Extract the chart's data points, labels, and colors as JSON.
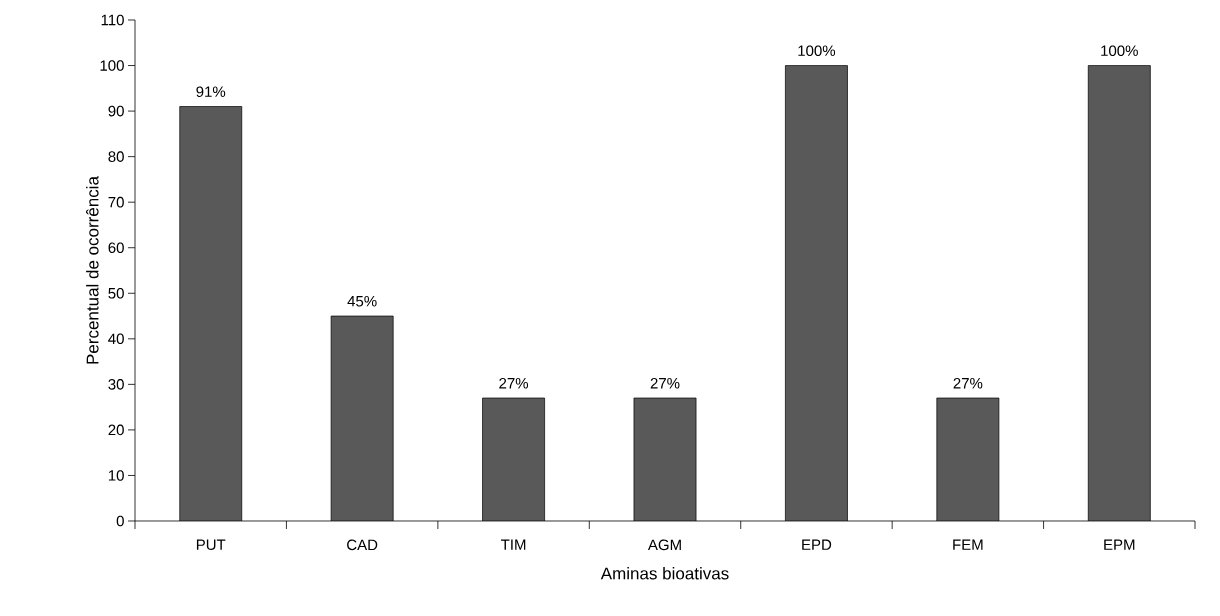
{
  "chart_data": {
    "type": "bar",
    "xlabel": "Aminas bioativas",
    "ylabel": "Percentual de ocorrência",
    "categories": [
      "PUT",
      "CAD",
      "TIM",
      "AGM",
      "EPD",
      "FEM",
      "EPM"
    ],
    "values": [
      91,
      45,
      27,
      27,
      100,
      27,
      100
    ],
    "value_labels": [
      "91%",
      "45%",
      "27%",
      "27%",
      "100%",
      "27%",
      "100%"
    ],
    "color": "#595959",
    "ylim": [
      0,
      110
    ],
    "yticks": [
      0,
      10,
      20,
      30,
      40,
      50,
      60,
      70,
      80,
      90,
      100,
      110
    ]
  }
}
